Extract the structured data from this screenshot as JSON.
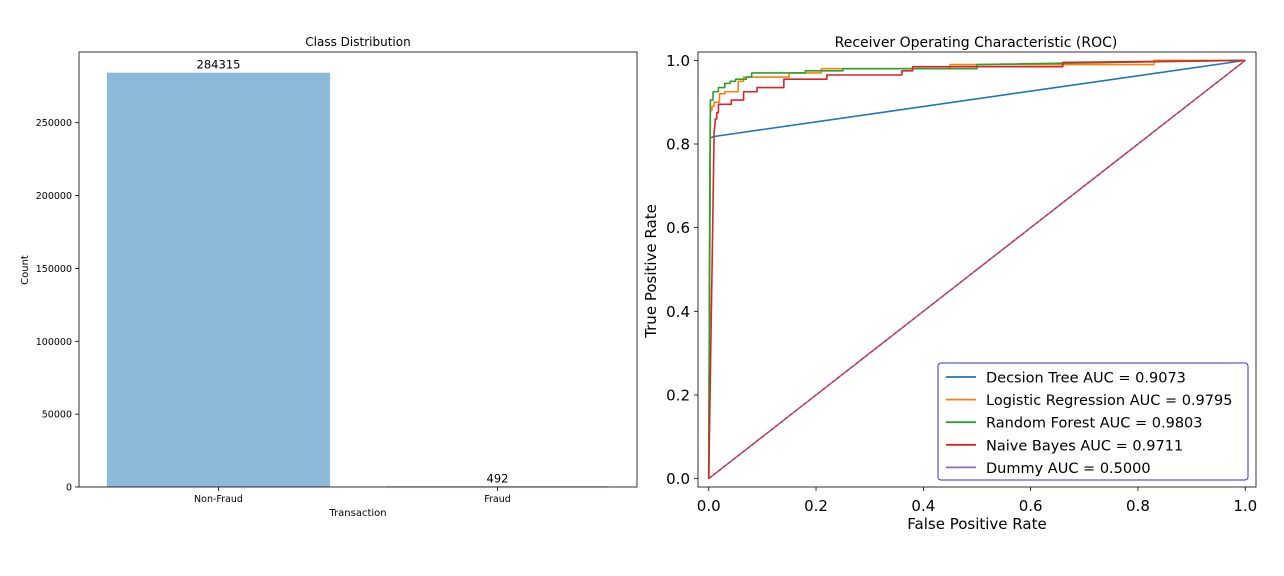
{
  "colors": {
    "bar": "#8ebad9",
    "axis": "#000000",
    "legend_border": "#3333cc"
  },
  "chart_data": [
    {
      "type": "bar",
      "title": "Class Distribution",
      "xlabel": "Transaction",
      "ylabel": "Count",
      "categories": [
        "Non-Fraud",
        "Fraud"
      ],
      "values": [
        284315,
        492
      ],
      "value_labels": [
        "284315",
        "492"
      ],
      "ylim": [
        0,
        298531
      ],
      "yticks": [
        0,
        50000,
        100000,
        150000,
        200000,
        250000
      ],
      "ytick_labels": [
        "0",
        "50000",
        "100000",
        "150000",
        "200000",
        "250000"
      ],
      "grid": false
    },
    {
      "type": "line",
      "title": "Receiver Operating Characteristic (ROC)",
      "xlabel": "False Positive Rate",
      "ylabel": "True Positive Rate",
      "xlim": [
        -0.02,
        1.02
      ],
      "ylim": [
        -0.02,
        1.02
      ],
      "xticks": [
        0,
        0.2,
        0.4,
        0.6,
        0.8,
        1.0
      ],
      "xtick_labels": [
        "0.0",
        "0.2",
        "0.4",
        "0.6",
        "0.8",
        "1.0"
      ],
      "yticks": [
        0,
        0.2,
        0.4,
        0.6,
        0.8,
        1.0
      ],
      "ytick_labels": [
        "0.0",
        "0.2",
        "0.4",
        "0.6",
        "0.8",
        "1.0"
      ],
      "grid": false,
      "legend_position": "lower right",
      "series": [
        {
          "name": "Decsion Tree AUC = 0.9073",
          "color": "#1f77b4",
          "x": [
            0,
            0.003,
            0.01,
            1.0
          ],
          "y": [
            0,
            0.815,
            0.818,
            1.0
          ]
        },
        {
          "name": "Logistic Regression AUC = 0.9795",
          "color": "#ff7f0e",
          "x": [
            0,
            0.002,
            0.003,
            0.006,
            0.006,
            0.01,
            0.01,
            0.02,
            0.02,
            0.03,
            0.03,
            0.055,
            0.055,
            0.065,
            0.065,
            0.15,
            0.15,
            0.21,
            0.21,
            0.45,
            0.45,
            0.83,
            0.83,
            1.0
          ],
          "y": [
            0,
            0.6,
            0.88,
            0.88,
            0.89,
            0.89,
            0.9,
            0.9,
            0.92,
            0.92,
            0.925,
            0.925,
            0.95,
            0.95,
            0.96,
            0.96,
            0.97,
            0.97,
            0.98,
            0.98,
            0.99,
            0.99,
            1.0,
            1.0
          ]
        },
        {
          "name": "Random Forest AUC = 0.9803",
          "color": "#2ca02c",
          "x": [
            0,
            0.002,
            0.003,
            0.003,
            0.008,
            0.008,
            0.018,
            0.018,
            0.03,
            0.03,
            0.04,
            0.04,
            0.05,
            0.05,
            0.07,
            0.07,
            0.08,
            0.08,
            0.18,
            0.18,
            0.25,
            0.25,
            0.5,
            0.5,
            1.0
          ],
          "y": [
            0,
            0.7,
            0.89,
            0.905,
            0.905,
            0.925,
            0.925,
            0.935,
            0.935,
            0.945,
            0.945,
            0.95,
            0.95,
            0.955,
            0.955,
            0.96,
            0.96,
            0.97,
            0.97,
            0.975,
            0.975,
            0.98,
            0.98,
            0.99,
            1.0
          ]
        },
        {
          "name": "Naive Bayes AUC = 0.9711",
          "color": "#d62728",
          "x": [
            0,
            0.008,
            0.01,
            0.012,
            0.012,
            0.015,
            0.015,
            0.018,
            0.018,
            0.042,
            0.042,
            0.065,
            0.065,
            0.09,
            0.09,
            0.14,
            0.14,
            0.22,
            0.22,
            0.36,
            0.36,
            0.38,
            0.38,
            0.66,
            0.66,
            1.0
          ],
          "y": [
            0,
            0.65,
            0.83,
            0.85,
            0.86,
            0.86,
            0.875,
            0.875,
            0.895,
            0.895,
            0.905,
            0.905,
            0.925,
            0.925,
            0.935,
            0.935,
            0.955,
            0.955,
            0.965,
            0.965,
            0.975,
            0.975,
            0.985,
            0.985,
            0.995,
            1.0
          ]
        },
        {
          "name": "Dummy AUC = 0.5000",
          "color": "#9467bd",
          "x": [
            0,
            1.0
          ],
          "y": [
            0,
            1.0
          ]
        }
      ]
    }
  ]
}
